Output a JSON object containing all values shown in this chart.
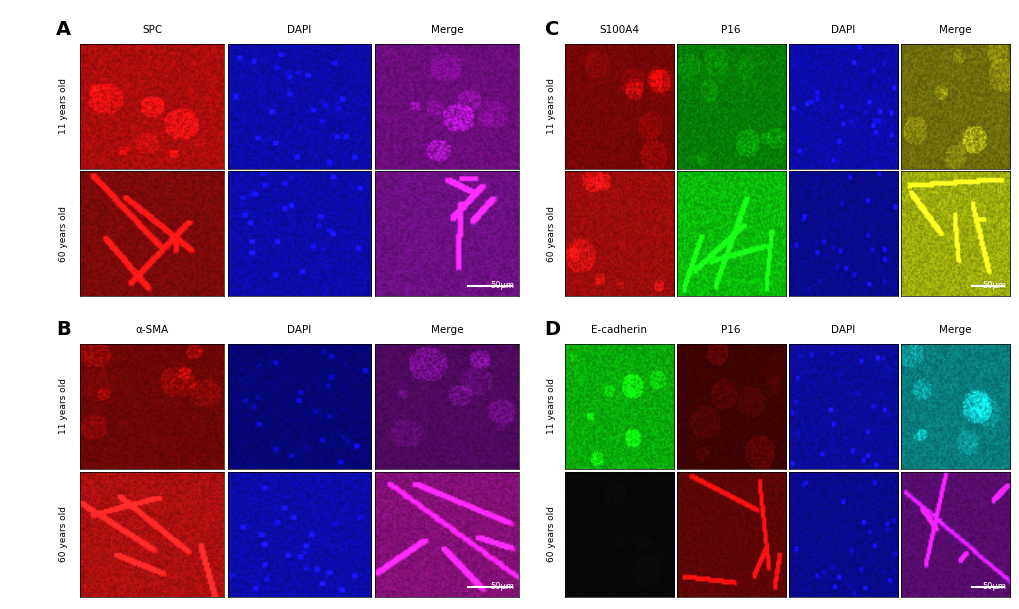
{
  "bg_color": "#000000",
  "fig_bg": "#ffffff",
  "panel_label_color": "#000000",
  "text_color": "#ffffff",
  "label_color": "#000000",
  "panels": {
    "A": {
      "label": "A",
      "col_headers": [
        "SPC",
        "DAPI",
        "Merge"
      ],
      "row_labels": [
        "11 years old",
        "60 years old"
      ],
      "cols": 3,
      "rows": 2,
      "scale_bar": "50μm",
      "colors": [
        [
          "red_bright",
          "blue_medium",
          "red_blue_merge"
        ],
        [
          "red_dim",
          "blue_medium",
          "red_blue_merge2"
        ]
      ]
    },
    "B": {
      "label": "B",
      "col_headers": [
        "α-SMA",
        "DAPI",
        "Merge"
      ],
      "row_labels": [
        "11 years old",
        "60 years old"
      ],
      "cols": 3,
      "rows": 2,
      "scale_bar": "50μm",
      "colors": [
        [
          "red_dim2",
          "blue_dim",
          "red_blue_dim"
        ],
        [
          "red_bright2",
          "blue_medium",
          "red_blue_bright"
        ]
      ]
    },
    "C": {
      "label": "C",
      "col_headers": [
        "S100A4",
        "P16",
        "DAPI",
        "Merge"
      ],
      "row_labels": [
        "11 years old",
        "60 years old"
      ],
      "cols": 4,
      "rows": 2,
      "scale_bar": "50μm",
      "colors": [
        [
          "red_dim3",
          "green_dim",
          "blue_medium",
          "yellow_dim"
        ],
        [
          "red_bright3",
          "green_bright",
          "blue_medium2",
          "yellow_bright"
        ]
      ]
    },
    "D": {
      "label": "D",
      "col_headers": [
        "E-cadherin",
        "P16",
        "DAPI",
        "Merge"
      ],
      "row_labels": [
        "11 years old",
        "60 years old"
      ],
      "cols": 4,
      "rows": 2,
      "scale_bar": "50μm",
      "colors": [
        [
          "green_bright2",
          "red_vdim",
          "blue_medium3",
          "green_blue_merge"
        ],
        [
          "black_img",
          "red_dim4",
          "blue_medium4",
          "red_blue_dim2"
        ]
      ]
    }
  },
  "color_map": {
    "red_bright": [
      0.55,
      0.04,
      0.04
    ],
    "red_dim": [
      0.4,
      0.03,
      0.03
    ],
    "red_dim2": [
      0.35,
      0.02,
      0.02
    ],
    "red_bright2": [
      0.55,
      0.05,
      0.05
    ],
    "red_dim3": [
      0.38,
      0.02,
      0.02
    ],
    "red_bright3": [
      0.5,
      0.04,
      0.04
    ],
    "red_vdim": [
      0.2,
      0.01,
      0.01
    ],
    "red_dim4": [
      0.3,
      0.02,
      0.02
    ],
    "blue_medium": [
      0.04,
      0.04,
      0.55
    ],
    "blue_dim": [
      0.02,
      0.02,
      0.38
    ],
    "blue_medium2": [
      0.03,
      0.03,
      0.45
    ],
    "blue_medium3": [
      0.04,
      0.04,
      0.5
    ],
    "blue_medium4": [
      0.03,
      0.03,
      0.45
    ],
    "green_dim": [
      0.02,
      0.4,
      0.02
    ],
    "green_bright": [
      0.03,
      0.6,
      0.03
    ],
    "green_bright2": [
      0.03,
      0.55,
      0.03
    ],
    "red_blue_merge": [
      0.35,
      0.04,
      0.4
    ],
    "red_blue_merge2": [
      0.35,
      0.05,
      0.42
    ],
    "red_blue_dim": [
      0.25,
      0.03,
      0.3
    ],
    "red_blue_bright": [
      0.42,
      0.05,
      0.38
    ],
    "yellow_dim": [
      0.35,
      0.35,
      0.04
    ],
    "yellow_bright": [
      0.5,
      0.55,
      0.04
    ],
    "green_blue_merge": [
      0.03,
      0.4,
      0.4
    ],
    "red_blue_dim2": [
      0.28,
      0.04,
      0.35
    ],
    "black_img": [
      0.02,
      0.02,
      0.02
    ]
  }
}
